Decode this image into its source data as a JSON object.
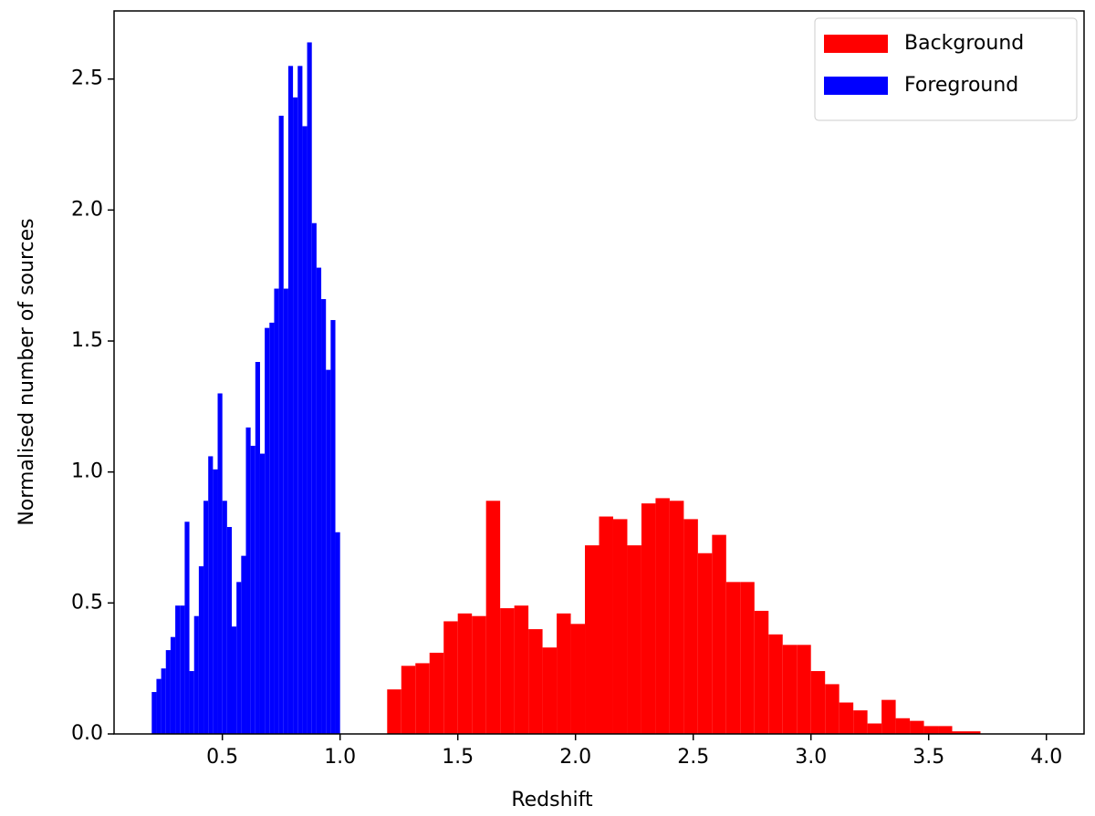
{
  "chart_data": {
    "type": "histogram",
    "xlabel": "Redshift",
    "ylabel": "Normalised number of sources",
    "xlim": [
      0.04,
      4.16
    ],
    "ylim": [
      0,
      2.76
    ],
    "xticks": [
      0.5,
      {
        "value": 1,
        "label": "1.0"
      },
      1.5,
      {
        "value": 2,
        "label": "2.0"
      },
      2.5,
      {
        "value": 3,
        "label": "3.0"
      },
      3.5,
      {
        "value": 4,
        "label": "4.0"
      }
    ],
    "yticks": [
      {
        "value": 0,
        "label": "0.0"
      },
      0.5,
      {
        "value": 1,
        "label": "1.0"
      },
      1.5,
      {
        "value": 2,
        "label": "2.0"
      },
      2.5
    ],
    "legend": "upper right",
    "series": [
      {
        "name": "Background",
        "color": "#ff0000",
        "bins": [
          1.2,
          1.26,
          1.32,
          1.38,
          1.44,
          1.5,
          1.56,
          1.62,
          1.68,
          1.74,
          1.8,
          1.86,
          1.92,
          1.98,
          2.04,
          2.1,
          2.16,
          2.22,
          2.28,
          2.34,
          2.4,
          2.46,
          2.52,
          2.58,
          2.64,
          2.7,
          2.76,
          2.82,
          2.88,
          2.94,
          3.0,
          3.06,
          3.12,
          3.18,
          3.24,
          3.3,
          3.36,
          3.42,
          3.48,
          3.54,
          3.6,
          3.66,
          3.72
        ],
        "values": [
          0.17,
          0.26,
          0.27,
          0.31,
          0.43,
          0.46,
          0.45,
          0.89,
          0.48,
          0.49,
          0.4,
          0.33,
          0.46,
          0.42,
          0.72,
          0.83,
          0.82,
          0.72,
          0.88,
          0.9,
          0.89,
          0.82,
          0.69,
          0.76,
          0.58,
          0.58,
          0.47,
          0.38,
          0.34,
          0.34,
          0.24,
          0.19,
          0.12,
          0.09,
          0.04,
          0.13,
          0.06,
          0.05,
          0.03,
          0.03,
          0.01,
          0.01
        ]
      },
      {
        "name": "Foreground",
        "color": "#0000ff",
        "bins": [
          0.2,
          0.22,
          0.24,
          0.26,
          0.28,
          0.3,
          0.32,
          0.34,
          0.36,
          0.38,
          0.4,
          0.42,
          0.44,
          0.46,
          0.48,
          0.5,
          0.52,
          0.54,
          0.56,
          0.58,
          0.6,
          0.62,
          0.64,
          0.66,
          0.68,
          0.7,
          0.72,
          0.74,
          0.76,
          0.78,
          0.8,
          0.82,
          0.84,
          0.86,
          0.88,
          0.9,
          0.92,
          0.94,
          0.96,
          0.98,
          1.0
        ],
        "values": [
          0.16,
          0.21,
          0.25,
          0.32,
          0.37,
          0.49,
          0.49,
          0.81,
          0.24,
          0.45,
          0.64,
          0.89,
          1.06,
          1.01,
          1.3,
          0.89,
          0.79,
          0.41,
          0.58,
          0.68,
          1.17,
          1.1,
          1.42,
          1.07,
          1.55,
          1.57,
          1.7,
          2.36,
          1.7,
          2.55,
          2.43,
          2.55,
          2.32,
          2.64,
          1.95,
          1.78,
          1.66,
          1.39,
          1.58,
          0.77
        ]
      }
    ]
  }
}
